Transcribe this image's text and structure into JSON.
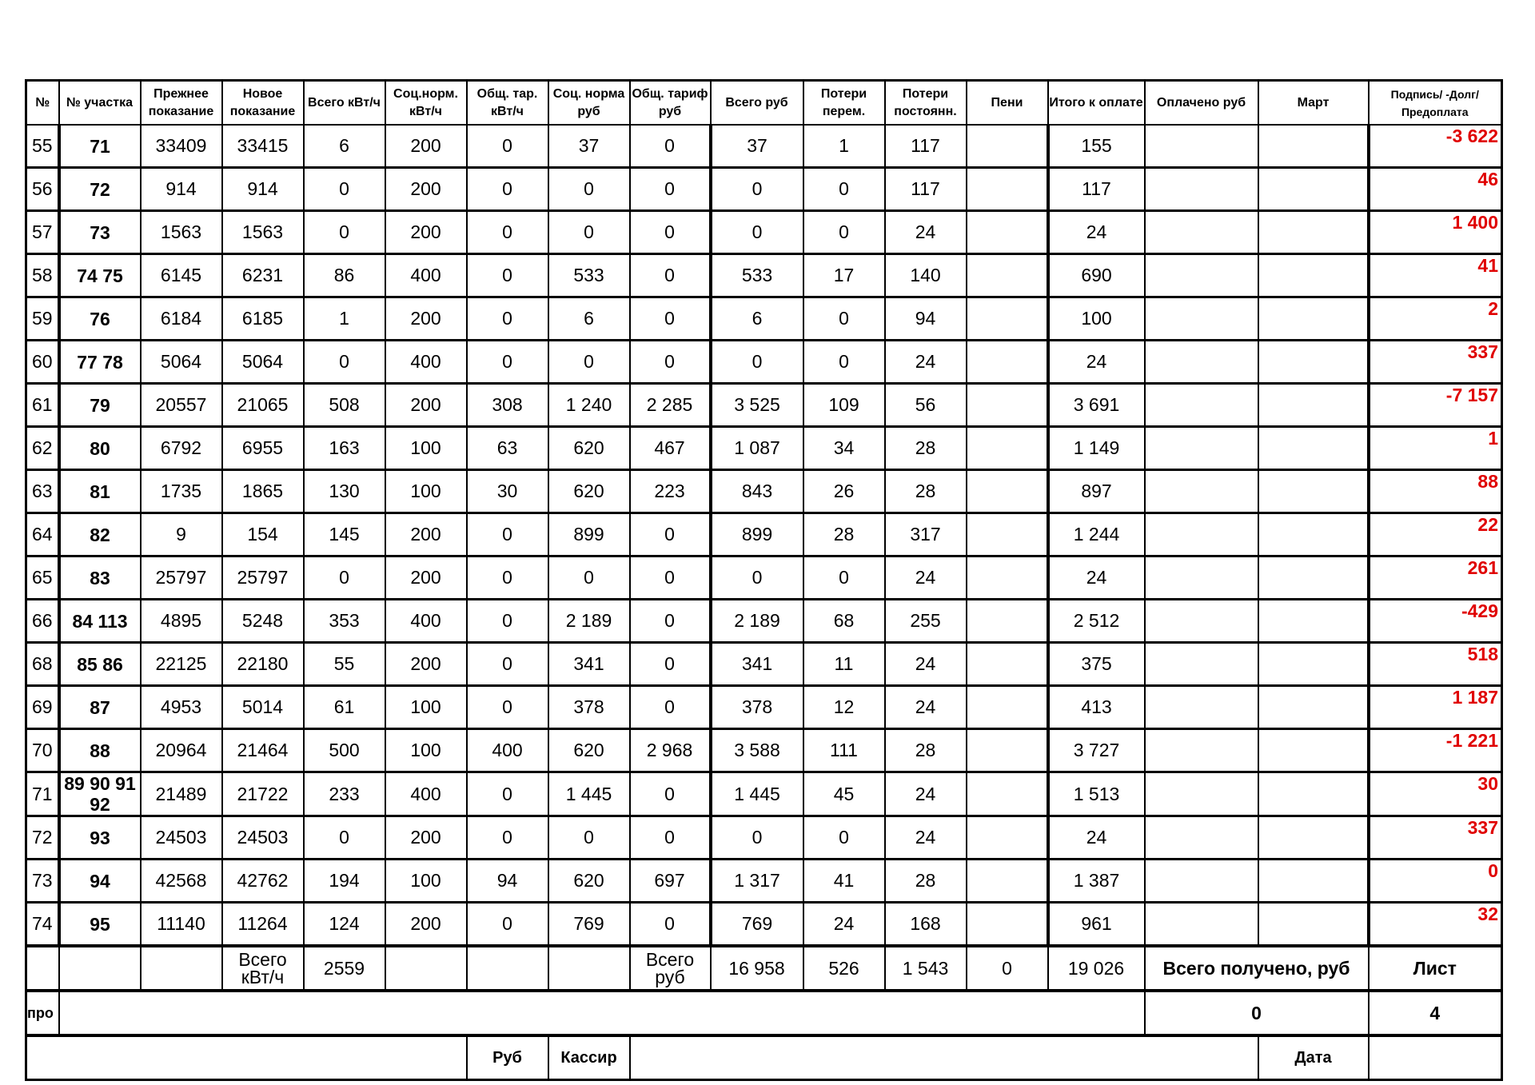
{
  "headers": [
    "№",
    "№ участка",
    "Прежнее показание",
    "Новое показание",
    "Всего кВт/ч",
    "Соц.норм. кВт/ч",
    "Общ. тар. кВт/ч",
    "Соц. норма руб",
    "Общ. тариф руб",
    "Всего руб",
    "Потери перем.",
    "Потери постоянн.",
    "Пени",
    "Итого к оплате",
    "Оплачено руб",
    "Март",
    "Подпись/ -Долг/Предоплата"
  ],
  "rows": [
    [
      "55",
      "71",
      "33409",
      "33415",
      "6",
      "200",
      "0",
      "37",
      "0",
      "37",
      "1",
      "117",
      "",
      "155",
      "",
      "",
      "-3 622"
    ],
    [
      "56",
      "72",
      "914",
      "914",
      "0",
      "200",
      "0",
      "0",
      "0",
      "0",
      "0",
      "117",
      "",
      "117",
      "",
      "",
      "46"
    ],
    [
      "57",
      "73",
      "1563",
      "1563",
      "0",
      "200",
      "0",
      "0",
      "0",
      "0",
      "0",
      "24",
      "",
      "24",
      "",
      "",
      "1 400"
    ],
    [
      "58",
      "74 75",
      "6145",
      "6231",
      "86",
      "400",
      "0",
      "533",
      "0",
      "533",
      "17",
      "140",
      "",
      "690",
      "",
      "",
      "41"
    ],
    [
      "59",
      "76",
      "6184",
      "6185",
      "1",
      "200",
      "0",
      "6",
      "0",
      "6",
      "0",
      "94",
      "",
      "100",
      "",
      "",
      "2"
    ],
    [
      "60",
      "77 78",
      "5064",
      "5064",
      "0",
      "400",
      "0",
      "0",
      "0",
      "0",
      "0",
      "24",
      "",
      "24",
      "",
      "",
      "337"
    ],
    [
      "61",
      "79",
      "20557",
      "21065",
      "508",
      "200",
      "308",
      "1 240",
      "2 285",
      "3 525",
      "109",
      "56",
      "",
      "3 691",
      "",
      "",
      "-7 157"
    ],
    [
      "62",
      "80",
      "6792",
      "6955",
      "163",
      "100",
      "63",
      "620",
      "467",
      "1 087",
      "34",
      "28",
      "",
      "1 149",
      "",
      "",
      "1"
    ],
    [
      "63",
      "81",
      "1735",
      "1865",
      "130",
      "100",
      "30",
      "620",
      "223",
      "843",
      "26",
      "28",
      "",
      "897",
      "",
      "",
      "88"
    ],
    [
      "64",
      "82",
      "9",
      "154",
      "145",
      "200",
      "0",
      "899",
      "0",
      "899",
      "28",
      "317",
      "",
      "1 244",
      "",
      "",
      "22"
    ],
    [
      "65",
      "83",
      "25797",
      "25797",
      "0",
      "200",
      "0",
      "0",
      "0",
      "0",
      "0",
      "24",
      "",
      "24",
      "",
      "",
      "261"
    ],
    [
      "66",
      "84 113",
      "4895",
      "5248",
      "353",
      "400",
      "0",
      "2 189",
      "0",
      "2 189",
      "68",
      "255",
      "",
      "2 512",
      "",
      "",
      "-429"
    ],
    [
      "68",
      "85 86",
      "22125",
      "22180",
      "55",
      "200",
      "0",
      "341",
      "0",
      "341",
      "11",
      "24",
      "",
      "375",
      "",
      "",
      "518"
    ],
    [
      "69",
      "87",
      "4953",
      "5014",
      "61",
      "100",
      "0",
      "378",
      "0",
      "378",
      "12",
      "24",
      "",
      "413",
      "",
      "",
      "1 187"
    ],
    [
      "70",
      "88",
      "20964",
      "21464",
      "500",
      "100",
      "400",
      "620",
      "2 968",
      "3 588",
      "111",
      "28",
      "",
      "3 727",
      "",
      "",
      "-1 221"
    ],
    [
      "71",
      "89 90 91 92",
      "21489",
      "21722",
      "233",
      "400",
      "0",
      "1 445",
      "0",
      "1 445",
      "45",
      "24",
      "",
      "1 513",
      "",
      "",
      "30"
    ],
    [
      "72",
      "93",
      "24503",
      "24503",
      "0",
      "200",
      "0",
      "0",
      "0",
      "0",
      "0",
      "24",
      "",
      "24",
      "",
      "",
      "337"
    ],
    [
      "73",
      "94",
      "42568",
      "42762",
      "194",
      "100",
      "94",
      "620",
      "697",
      "1 317",
      "41",
      "28",
      "",
      "1 387",
      "",
      "",
      "0"
    ],
    [
      "74",
      "95",
      "11140",
      "11264",
      "124",
      "200",
      "0",
      "769",
      "0",
      "769",
      "24",
      "168",
      "",
      "961",
      "",
      "",
      "32"
    ]
  ],
  "totals": {
    "kwh_label": "Всего кВт/ч",
    "kwh": "2559",
    "rub_label": "Всего руб",
    "rub": "16 958",
    "loss_var": "526",
    "loss_const": "1 543",
    "penalty": "0",
    "total_due": "19 026",
    "received_label": "Всего получено, руб",
    "sheet_label": "Лист"
  },
  "row2": {
    "prefix": "про",
    "received": "0",
    "sheet": "4"
  },
  "row3": {
    "rub": "Руб",
    "cashier": "Кассир",
    "date": "Дата"
  },
  "colors": {
    "debt": "#e00000"
  }
}
